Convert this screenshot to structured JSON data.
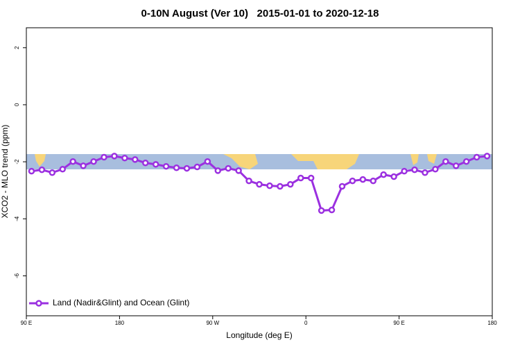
{
  "chart_data": {
    "type": "line",
    "title": "0-10N August (Ver 10)   2015-01-01 to 2020-12-18",
    "x_label": "Longitude (deg E)",
    "y_label": "XCO2 - MLO trend (ppm)",
    "x": [
      95,
      105,
      115,
      125,
      135,
      145,
      155,
      165,
      175,
      185,
      195,
      205,
      215,
      225,
      235,
      245,
      255,
      265,
      275,
      285,
      295,
      305,
      315,
      325,
      335,
      345,
      355,
      365,
      375,
      385,
      395,
      405,
      415,
      425,
      435,
      445,
      455,
      465,
      475,
      485,
      495,
      505,
      515,
      525,
      535
    ],
    "series": [
      {
        "name": "Land (Nadir&Glint) and Ocean (Glint)",
        "color": "#9b30e0",
        "values": [
          -2.33,
          -2.28,
          -2.38,
          -2.26,
          -1.99,
          -2.14,
          -1.99,
          -1.84,
          -1.8,
          -1.87,
          -1.92,
          -2.04,
          -2.09,
          -2.16,
          -2.21,
          -2.23,
          -2.18,
          -1.99,
          -2.31,
          -2.23,
          -2.31,
          -2.67,
          -2.79,
          -2.84,
          -2.86,
          -2.79,
          -2.57,
          -2.57,
          -3.71,
          -3.69,
          -2.86,
          -2.67,
          -2.62,
          -2.67,
          -2.45,
          -2.52,
          -2.33,
          -2.28,
          -2.38,
          -2.26,
          -1.99,
          -2.14,
          -1.99,
          -1.84,
          -1.8
        ]
      }
    ],
    "xlim": [
      90,
      540
    ],
    "xticks": [
      {
        "value": 90,
        "label": "90 E"
      },
      180,
      {
        "value": 270,
        "label": "90 W"
      },
      {
        "value": 360,
        "label": "0"
      },
      {
        "value": 450,
        "label": "90 E"
      },
      {
        "value": 540,
        "label": "180"
      }
    ],
    "ylim": [
      -7.4,
      2.7
    ],
    "yticks": [
      2,
      0,
      -2,
      -4,
      -6
    ],
    "legend": "bottom-left"
  }
}
